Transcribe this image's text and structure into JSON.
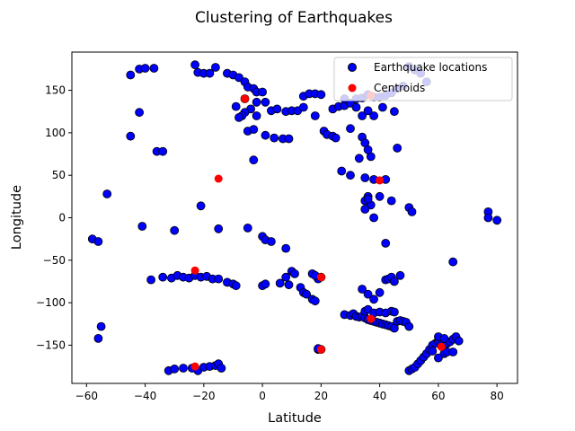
{
  "chart_data": {
    "type": "scatter",
    "title": "Clustering of Earthquakes",
    "xlabel": "Latitude",
    "ylabel": "Longitude",
    "xlim": [
      -65,
      87
    ],
    "ylim": [
      -195,
      195
    ],
    "xticks": [
      -60,
      -40,
      -20,
      0,
      20,
      40,
      60,
      80
    ],
    "yticks": [
      -150,
      -100,
      -50,
      0,
      50,
      100,
      150
    ],
    "xtick_labels": [
      "−60",
      "−40",
      "−20",
      "0",
      "20",
      "40",
      "60",
      "80"
    ],
    "ytick_labels": [
      "−150",
      "−100",
      "−50",
      "0",
      "50",
      "100",
      "150"
    ],
    "grid": false,
    "legend": {
      "position": "top-right",
      "entries": [
        "Earthquake locations",
        "Centroids"
      ]
    },
    "colors": {
      "points": "#0000ff",
      "centroids": "#ff0000",
      "edge": "#000000"
    },
    "series": [
      {
        "name": "Earthquake locations",
        "points": [
          [
            -45,
            168
          ],
          [
            -42,
            175
          ],
          [
            -40,
            176
          ],
          [
            -37,
            176
          ],
          [
            -45,
            96
          ],
          [
            -36,
            78
          ],
          [
            -34,
            78
          ],
          [
            -42,
            124
          ],
          [
            -23,
            180
          ],
          [
            -22,
            171
          ],
          [
            -20,
            170
          ],
          [
            -18,
            170
          ],
          [
            -16,
            177
          ],
          [
            -12,
            170
          ],
          [
            -10,
            168
          ],
          [
            -8,
            165
          ],
          [
            -6,
            160
          ],
          [
            -5,
            154
          ],
          [
            -3,
            152
          ],
          [
            -2,
            148
          ],
          [
            0,
            148
          ],
          [
            -2,
            136
          ],
          [
            1,
            136
          ],
          [
            -4,
            128
          ],
          [
            -6,
            124
          ],
          [
            -7,
            120
          ],
          [
            -8,
            118
          ],
          [
            -5,
            102
          ],
          [
            -3,
            104
          ],
          [
            -9,
            131
          ],
          [
            -6,
            140
          ],
          [
            -2,
            120
          ],
          [
            3,
            126
          ],
          [
            5,
            128
          ],
          [
            8,
            125
          ],
          [
            10,
            126
          ],
          [
            12,
            126
          ],
          [
            14,
            143
          ],
          [
            16,
            146
          ],
          [
            18,
            146
          ],
          [
            20,
            145
          ],
          [
            14,
            130
          ],
          [
            18,
            120
          ],
          [
            24,
            128
          ],
          [
            26,
            131
          ],
          [
            28,
            132
          ],
          [
            30,
            135
          ],
          [
            32,
            140
          ],
          [
            34,
            141
          ],
          [
            36,
            145
          ],
          [
            38,
            142
          ],
          [
            40,
            142
          ],
          [
            42,
            144
          ],
          [
            44,
            147
          ],
          [
            46,
            152
          ],
          [
            48,
            155
          ],
          [
            50,
            178
          ],
          [
            52,
            174
          ],
          [
            54,
            170
          ],
          [
            56,
            160
          ],
          [
            28,
            140
          ],
          [
            32,
            130
          ],
          [
            34,
            120
          ],
          [
            36,
            126
          ],
          [
            38,
            120
          ],
          [
            41,
            130
          ],
          [
            45,
            125
          ],
          [
            21,
            102
          ],
          [
            22,
            98
          ],
          [
            24,
            96
          ],
          [
            25,
            94
          ],
          [
            30,
            105
          ],
          [
            34,
            95
          ],
          [
            35,
            88
          ],
          [
            37,
            72
          ],
          [
            33,
            70
          ],
          [
            36,
            80
          ],
          [
            30,
            50
          ],
          [
            27,
            55
          ],
          [
            35,
            47
          ],
          [
            38,
            45
          ],
          [
            42,
            45
          ],
          [
            46,
            82
          ],
          [
            36,
            25
          ],
          [
            35,
            20
          ],
          [
            37,
            15
          ],
          [
            35,
            10
          ],
          [
            36,
            22
          ],
          [
            40,
            25
          ],
          [
            44,
            20
          ],
          [
            38,
            0
          ],
          [
            50,
            12
          ],
          [
            51,
            7
          ],
          [
            42,
            -30
          ],
          [
            -15,
            -13
          ],
          [
            -21,
            14
          ],
          [
            -30,
            -15
          ],
          [
            -41,
            -10
          ],
          [
            -53,
            28
          ],
          [
            -58,
            -25
          ],
          [
            -56,
            -28
          ],
          [
            -3,
            68
          ],
          [
            1,
            97
          ],
          [
            4,
            94
          ],
          [
            7,
            93
          ],
          [
            9,
            93
          ],
          [
            -5,
            -12
          ],
          [
            0,
            -22
          ],
          [
            1,
            -26
          ],
          [
            3,
            -28
          ],
          [
            8,
            -36
          ],
          [
            -56,
            -142
          ],
          [
            -55,
            -128
          ],
          [
            -38,
            -73
          ],
          [
            -34,
            -70
          ],
          [
            -31,
            -71
          ],
          [
            -29,
            -68
          ],
          [
            -27,
            -70
          ],
          [
            -25,
            -71
          ],
          [
            -23,
            -68
          ],
          [
            -21,
            -70
          ],
          [
            -19,
            -69
          ],
          [
            -17,
            -72
          ],
          [
            -15,
            -72
          ],
          [
            -12,
            -76
          ],
          [
            -10,
            -78
          ],
          [
            -9,
            -80
          ],
          [
            0,
            -80
          ],
          [
            1,
            -78
          ],
          [
            6,
            -77
          ],
          [
            9,
            -79
          ],
          [
            10,
            -63
          ],
          [
            11,
            -66
          ],
          [
            8,
            -70
          ],
          [
            13,
            -82
          ],
          [
            14,
            -88
          ],
          [
            15,
            -90
          ],
          [
            17,
            -96
          ],
          [
            18,
            -98
          ],
          [
            19,
            -72
          ],
          [
            20,
            -70
          ],
          [
            17,
            -66
          ],
          [
            18,
            -68
          ],
          [
            -32,
            -180
          ],
          [
            -30,
            -178
          ],
          [
            -27,
            -177
          ],
          [
            -24,
            -177
          ],
          [
            -22,
            -180
          ],
          [
            -20,
            -176
          ],
          [
            -18,
            -175
          ],
          [
            -16,
            -174
          ],
          [
            -15,
            -172
          ],
          [
            -14,
            -177
          ],
          [
            19,
            -155
          ],
          [
            20,
            -155
          ],
          [
            19,
            -154
          ],
          [
            28,
            -114
          ],
          [
            30,
            -115
          ],
          [
            31,
            -113
          ],
          [
            32,
            -116
          ],
          [
            33,
            -117
          ],
          [
            34,
            -116
          ],
          [
            35,
            -118
          ],
          [
            36,
            -120
          ],
          [
            37,
            -121
          ],
          [
            38,
            -122
          ],
          [
            39,
            -123
          ],
          [
            40,
            -124
          ],
          [
            41,
            -125
          ],
          [
            42,
            -126
          ],
          [
            43,
            -127
          ],
          [
            44,
            -128
          ],
          [
            45,
            -130
          ],
          [
            46,
            -122
          ],
          [
            47,
            -121
          ],
          [
            48,
            -122
          ],
          [
            49,
            -123
          ],
          [
            50,
            -128
          ],
          [
            35,
            -110
          ],
          [
            36,
            -108
          ],
          [
            38,
            -112
          ],
          [
            40,
            -111
          ],
          [
            42,
            -112
          ],
          [
            44,
            -110
          ],
          [
            45,
            -111
          ],
          [
            34,
            -84
          ],
          [
            36,
            -90
          ],
          [
            38,
            -96
          ],
          [
            40,
            -88
          ],
          [
            42,
            -73
          ],
          [
            43,
            -72
          ],
          [
            44,
            -70
          ],
          [
            45,
            -75
          ],
          [
            47,
            -68
          ],
          [
            50,
            -180
          ],
          [
            51,
            -178
          ],
          [
            52,
            -176
          ],
          [
            53,
            -172
          ],
          [
            54,
            -168
          ],
          [
            55,
            -164
          ],
          [
            56,
            -160
          ],
          [
            57,
            -155
          ],
          [
            58,
            -150
          ],
          [
            59,
            -148
          ],
          [
            60,
            -145
          ],
          [
            61,
            -150
          ],
          [
            62,
            -152
          ],
          [
            63,
            -148
          ],
          [
            64,
            -146
          ],
          [
            65,
            -143
          ],
          [
            66,
            -140
          ],
          [
            67,
            -145
          ],
          [
            62,
            -160
          ],
          [
            60,
            -165
          ],
          [
            58,
            -157
          ],
          [
            63,
            -158
          ],
          [
            65,
            -158
          ],
          [
            60,
            -140
          ],
          [
            62,
            -142
          ],
          [
            65,
            -52
          ],
          [
            77,
            7
          ],
          [
            77,
            0
          ],
          [
            80,
            -3
          ]
        ]
      },
      {
        "name": "Centroids",
        "points": [
          [
            -6,
            140
          ],
          [
            -15,
            46
          ],
          [
            -23,
            -62
          ],
          [
            -23,
            -175
          ],
          [
            20,
            -70
          ],
          [
            20,
            -155
          ],
          [
            37,
            -119
          ],
          [
            37,
            144
          ],
          [
            40,
            44
          ],
          [
            61,
            -152
          ]
        ]
      }
    ]
  }
}
